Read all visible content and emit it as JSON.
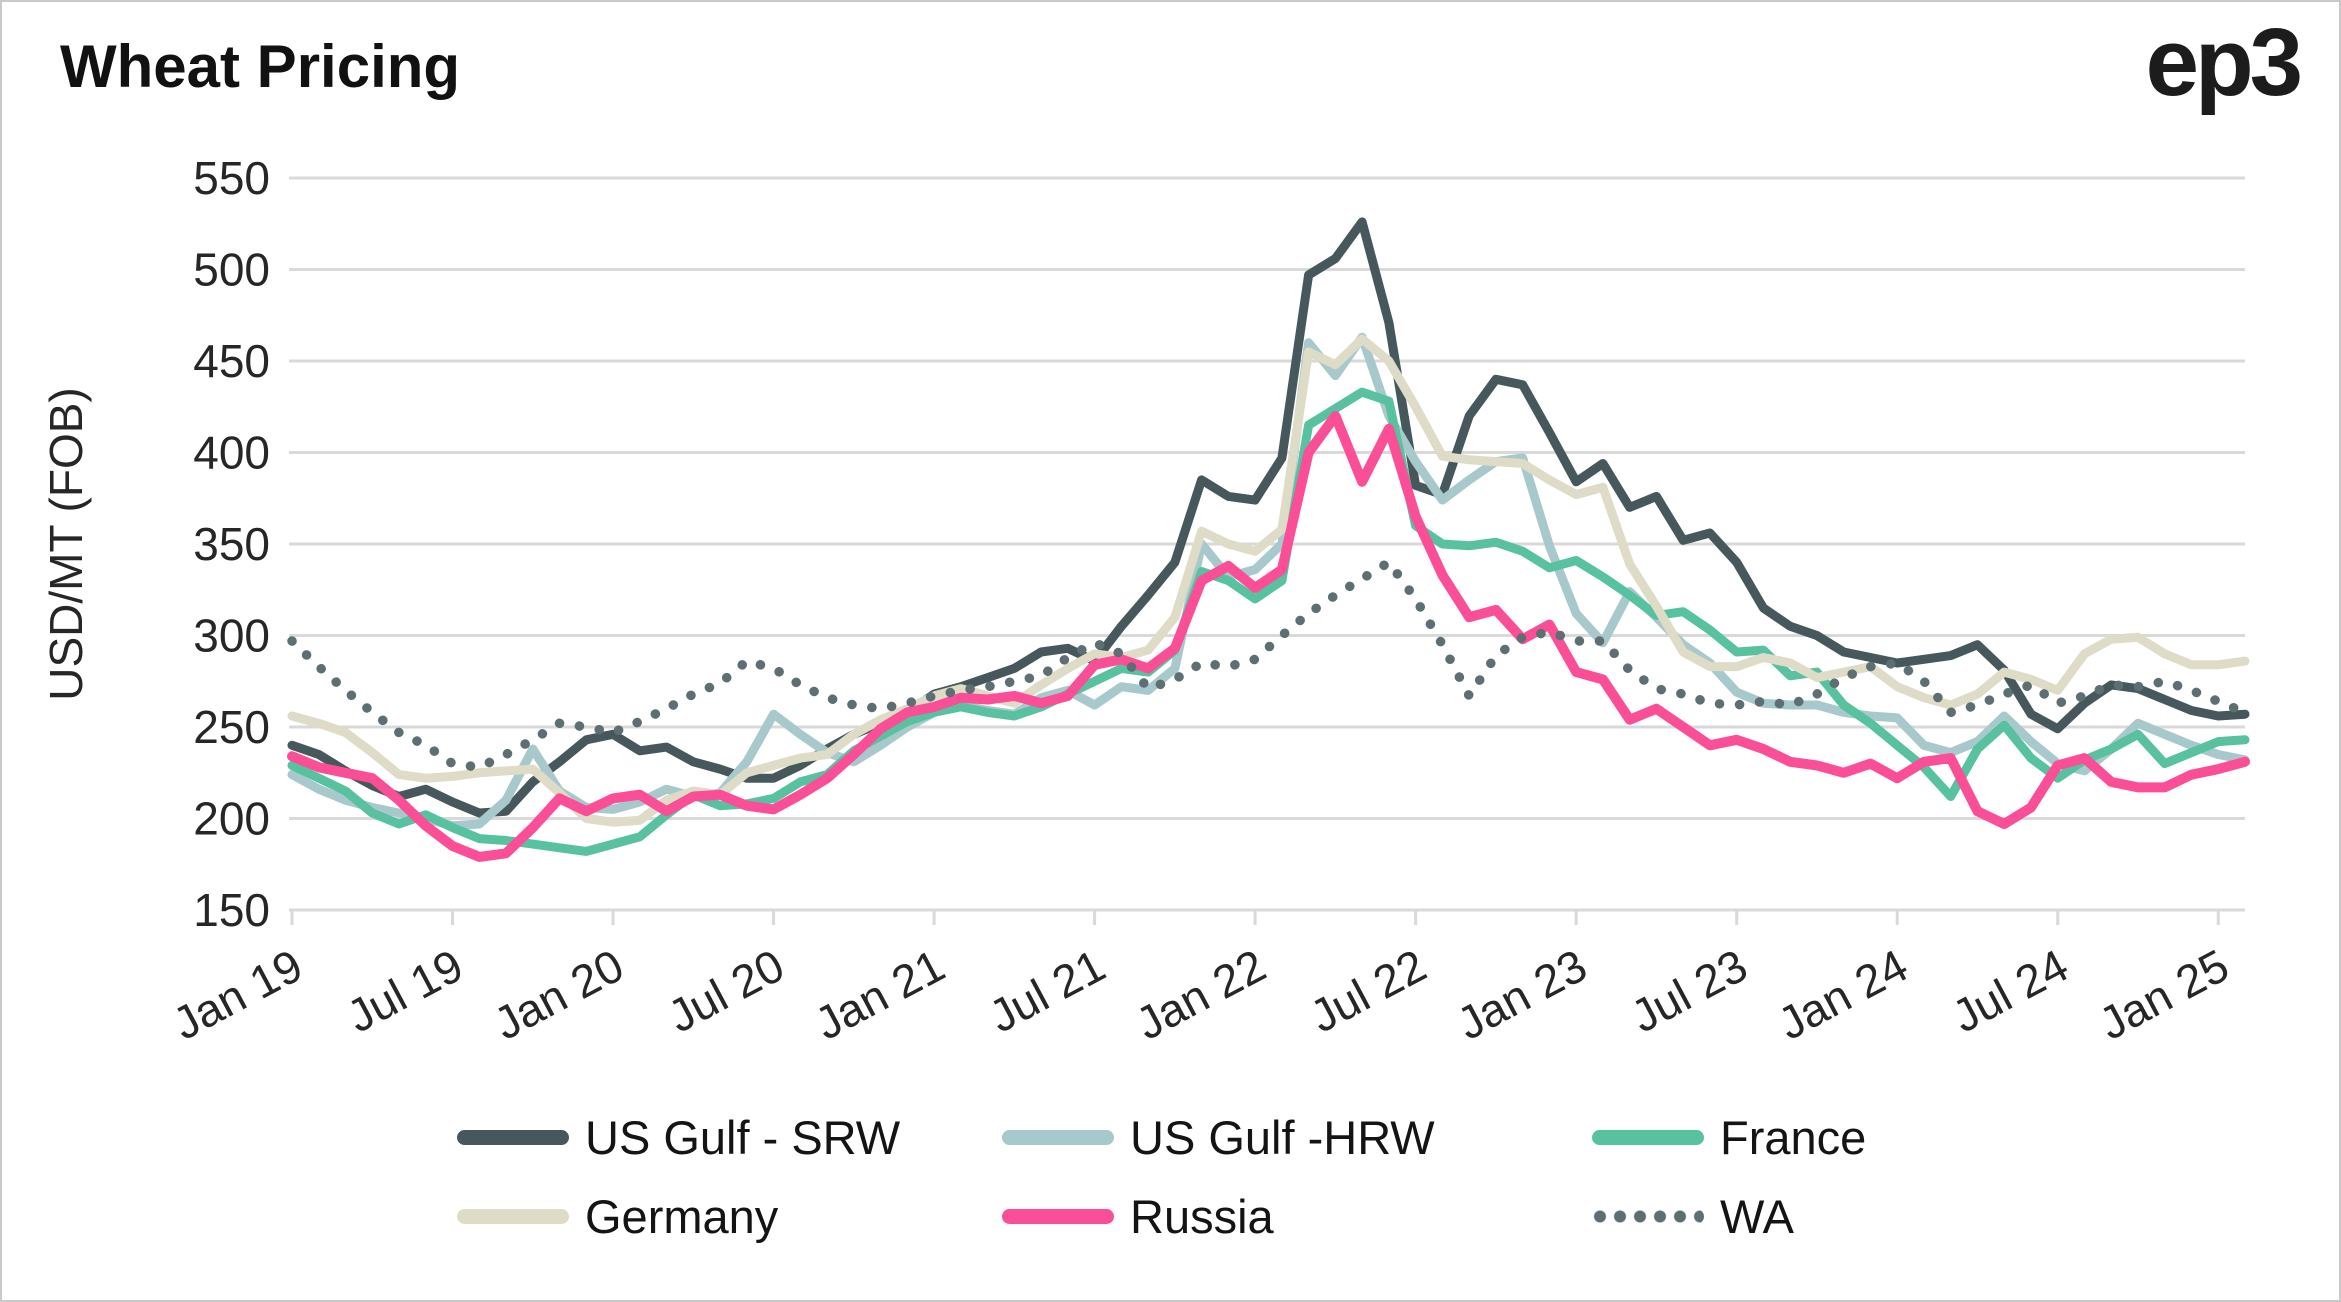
{
  "title": "Wheat Pricing",
  "logo": "ep3",
  "chart_data": {
    "type": "line",
    "title": "Wheat Pricing",
    "xlabel": "",
    "ylabel": "USD/MT (FOB)",
    "ylim": [
      150,
      550
    ],
    "yticks": [
      150,
      200,
      250,
      300,
      350,
      400,
      450,
      500,
      550
    ],
    "grid": "horizontal",
    "legend_position": "bottom",
    "x_tick_labels": [
      "Jan 19",
      "Jul 19",
      "Jan 20",
      "Jul 20",
      "Jan 21",
      "Jul 21",
      "Jan 22",
      "Jul 22",
      "Jan 23",
      "Jul 23",
      "Jan 24",
      "Jul 24",
      "Jan 25"
    ],
    "months": [
      "Jan 19",
      "Feb 19",
      "Mar 19",
      "Apr 19",
      "May 19",
      "Jun 19",
      "Jul 19",
      "Aug 19",
      "Sep 19",
      "Oct 19",
      "Nov 19",
      "Dec 19",
      "Jan 20",
      "Feb 20",
      "Mar 20",
      "Apr 20",
      "May 20",
      "Jun 20",
      "Jul 20",
      "Aug 20",
      "Sep 20",
      "Oct 20",
      "Nov 20",
      "Dec 20",
      "Jan 21",
      "Feb 21",
      "Mar 21",
      "Apr 21",
      "May 21",
      "Jun 21",
      "Jul 21",
      "Aug 21",
      "Sep 21",
      "Oct 21",
      "Nov 21",
      "Dec 21",
      "Jan 22",
      "Feb 22",
      "Mar 22",
      "Apr 22",
      "May 22",
      "Jun 22",
      "Jul 22",
      "Aug 22",
      "Sep 22",
      "Oct 22",
      "Nov 22",
      "Dec 22",
      "Jan 23",
      "Feb 23",
      "Mar 23",
      "Apr 23",
      "May 23",
      "Jun 23",
      "Jul 23",
      "Aug 23",
      "Sep 23",
      "Oct 23",
      "Nov 23",
      "Dec 23",
      "Jan 24",
      "Feb 24",
      "Mar 24",
      "Apr 24",
      "May 24",
      "Jun 24",
      "Jul 24",
      "Aug 24",
      "Sep 24",
      "Oct 24",
      "Nov 24",
      "Dec 24",
      "Jan 25",
      "Feb 25"
    ],
    "series": [
      {
        "name": "US Gulf - SRW",
        "color": "#47585c",
        "style": "solid",
        "values": [
          240,
          235,
          226,
          218,
          212,
          216,
          209,
          203,
          204,
          220,
          231,
          243,
          246,
          237,
          239,
          231,
          227,
          222,
          222,
          229,
          238,
          246,
          252,
          258,
          268,
          272,
          277,
          282,
          291,
          293,
          286,
          305,
          322,
          340,
          385,
          376,
          374,
          397,
          497,
          506,
          526,
          471,
          382,
          377,
          420,
          440,
          437,
          411,
          384,
          394,
          370,
          376,
          352,
          356,
          340,
          315,
          305,
          300,
          291,
          288,
          285,
          287,
          289,
          295,
          281,
          257,
          249,
          263,
          273,
          271,
          265,
          259,
          256,
          257
        ]
      },
      {
        "name": "US Gulf -HRW",
        "color": "#a8c9cc",
        "style": "solid",
        "values": [
          224,
          216,
          210,
          206,
          203,
          200,
          196,
          197,
          210,
          238,
          215,
          206,
          205,
          209,
          216,
          212,
          214,
          231,
          257,
          246,
          236,
          231,
          240,
          250,
          258,
          262,
          259,
          257,
          266,
          270,
          262,
          272,
          270,
          282,
          350,
          332,
          336,
          350,
          460,
          442,
          463,
          420,
          395,
          374,
          385,
          395,
          397,
          349,
          312,
          296,
          324,
          310,
          295,
          285,
          269,
          263,
          262,
          262,
          258,
          256,
          255,
          240,
          236,
          242,
          256,
          242,
          230,
          226,
          238,
          252,
          246,
          240,
          235,
          232
        ]
      },
      {
        "name": "France",
        "color": "#58c1a0",
        "style": "solid",
        "values": [
          229,
          222,
          215,
          203,
          197,
          202,
          195,
          189,
          188,
          186,
          184,
          182,
          186,
          190,
          202,
          213,
          207,
          208,
          211,
          220,
          224,
          237,
          245,
          253,
          258,
          261,
          258,
          256,
          261,
          268,
          275,
          282,
          280,
          292,
          335,
          330,
          320,
          330,
          415,
          424,
          433,
          428,
          360,
          350,
          349,
          351,
          346,
          337,
          341,
          332,
          322,
          311,
          313,
          303,
          291,
          292,
          278,
          280,
          262,
          252,
          240,
          228,
          212,
          238,
          251,
          233,
          222,
          232,
          238,
          246,
          230,
          236,
          242,
          243
        ]
      },
      {
        "name": "Germany",
        "color": "#dedcc7",
        "style": "solid",
        "values": [
          256,
          252,
          247,
          236,
          224,
          222,
          223,
          225,
          226,
          227,
          214,
          200,
          198,
          199,
          210,
          215,
          213,
          225,
          229,
          233,
          235,
          246,
          254,
          260,
          267,
          271,
          267,
          263,
          273,
          282,
          290,
          288,
          292,
          310,
          357,
          350,
          346,
          358,
          455,
          448,
          462,
          450,
          425,
          398,
          396,
          395,
          394,
          385,
          377,
          381,
          339,
          316,
          291,
          283,
          283,
          288,
          285,
          277,
          280,
          283,
          272,
          266,
          262,
          268,
          280,
          276,
          270,
          290,
          298,
          299,
          290,
          284,
          284,
          286
        ]
      },
      {
        "name": "Russia",
        "color": "#fa4e96",
        "style": "solid",
        "values": [
          234,
          228,
          225,
          222,
          210,
          196,
          185,
          179,
          181,
          195,
          211,
          204,
          211,
          213,
          204,
          212,
          213,
          207,
          205,
          213,
          222,
          235,
          249,
          258,
          261,
          266,
          265,
          267,
          263,
          267,
          284,
          287,
          282,
          293,
          330,
          338,
          326,
          336,
          400,
          420,
          384,
          413,
          365,
          333,
          310,
          314,
          298,
          306,
          280,
          276,
          254,
          260,
          250,
          240,
          243,
          238,
          231,
          229,
          225,
          230,
          222,
          231,
          233,
          204,
          197,
          206,
          229,
          233,
          220,
          217,
          217,
          224,
          227,
          231
        ]
      },
      {
        "name": "WA",
        "color": "#5d6f73",
        "style": "dotted",
        "values": [
          297,
          283,
          270,
          258,
          247,
          240,
          230,
          228,
          235,
          243,
          252,
          250,
          247,
          253,
          260,
          268,
          274,
          286,
          282,
          273,
          266,
          262,
          260,
          263,
          267,
          270,
          272,
          275,
          278,
          288,
          296,
          290,
          271,
          276,
          285,
          283,
          287,
          300,
          312,
          322,
          331,
          340,
          320,
          295,
          267,
          289,
          299,
          302,
          297,
          297,
          281,
          271,
          268,
          263,
          262,
          264,
          262,
          268,
          277,
          283,
          285,
          275,
          258,
          262,
          268,
          273,
          263,
          267,
          273,
          272,
          275,
          270,
          264,
          258
        ]
      }
    ],
    "axis_color": "#d9d9d9",
    "text_color": "#262626"
  }
}
